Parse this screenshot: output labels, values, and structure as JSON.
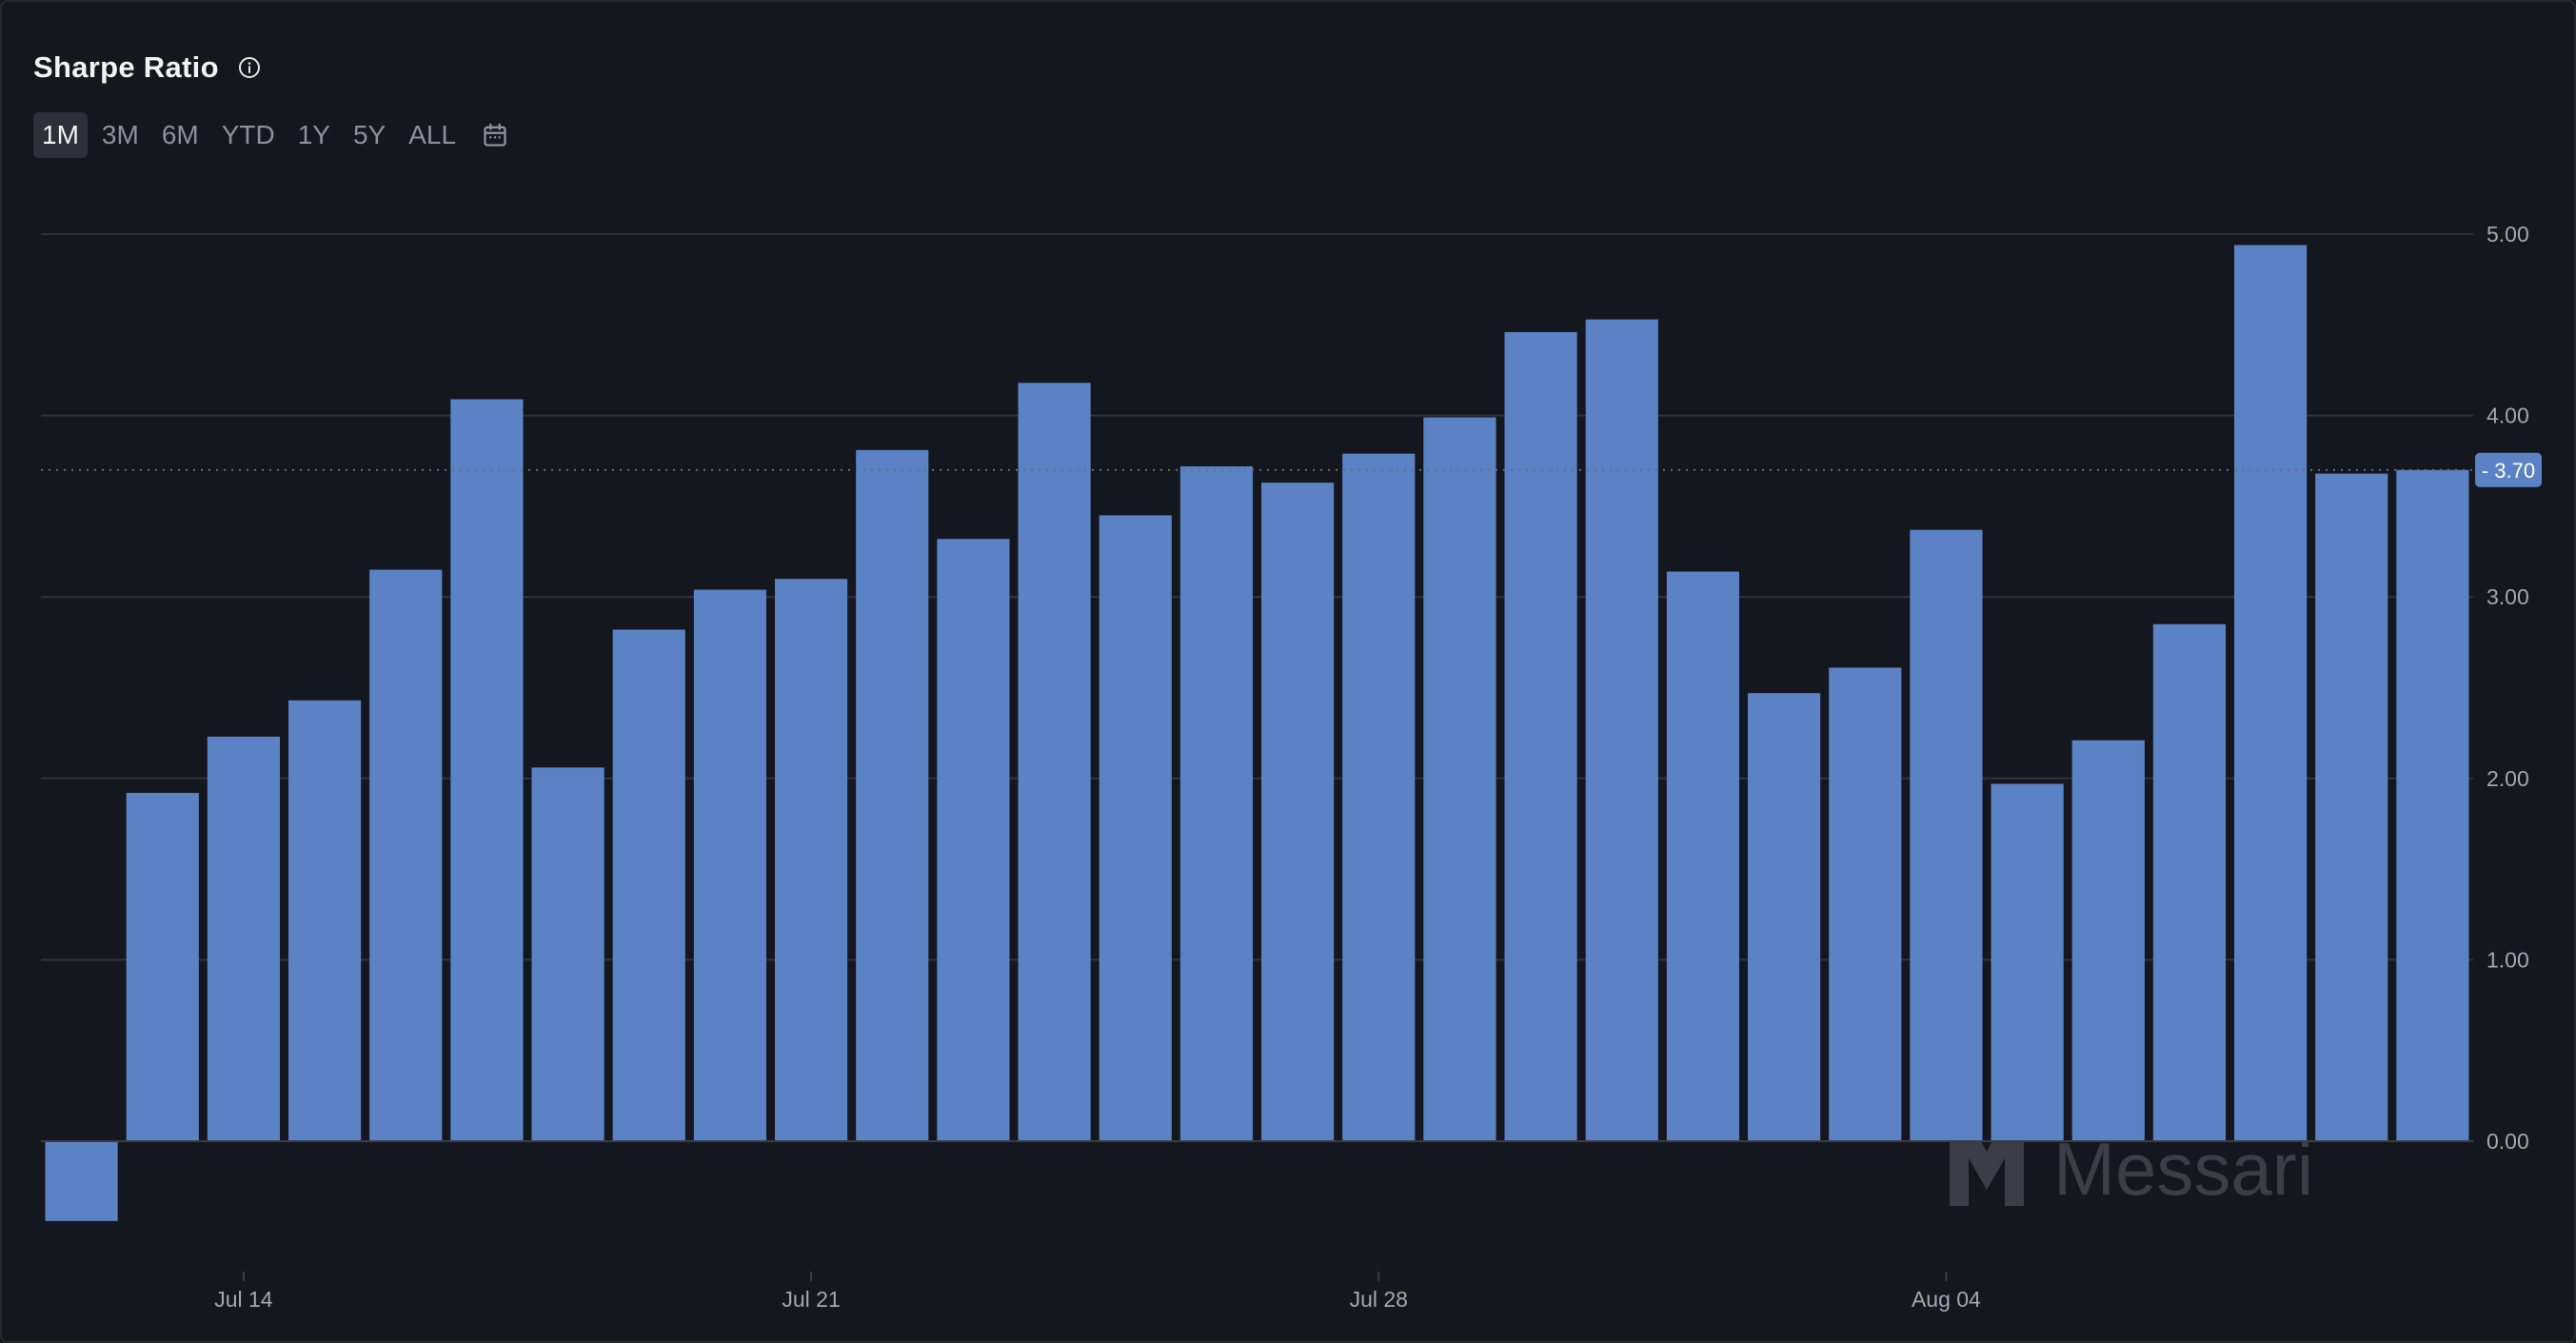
{
  "title": "Sharpe Ratio",
  "range_tabs": [
    "1M",
    "3M",
    "6M",
    "YTD",
    "1Y",
    "5Y",
    "ALL"
  ],
  "active_range": "1M",
  "icons": {
    "info": "info-icon",
    "calendar": "calendar-icon",
    "watermark": "messari-logo"
  },
  "watermark_text": "Messari",
  "colors": {
    "background": "#15171f",
    "bar": "#5b82c4",
    "grid": "#2f323b",
    "text": "#a3a7b1",
    "current_badge": "#5b82c4"
  },
  "chart_data": {
    "type": "bar",
    "title": "Sharpe Ratio",
    "xlabel": "",
    "ylabel": "",
    "x": [
      "2025-07-12",
      "2025-07-13",
      "2025-07-14",
      "2025-07-15",
      "2025-07-16",
      "2025-07-17",
      "2025-07-18",
      "2025-07-19",
      "2025-07-20",
      "2025-07-21",
      "2025-07-22",
      "2025-07-23",
      "2025-07-24",
      "2025-07-25",
      "2025-07-26",
      "2025-07-27",
      "2025-07-28",
      "2025-07-29",
      "2025-07-30",
      "2025-07-31",
      "2025-08-01",
      "2025-08-02",
      "2025-08-03",
      "2025-08-04",
      "2025-08-05",
      "2025-08-06",
      "2025-08-07",
      "2025-08-08",
      "2025-08-09",
      "2025-08-10"
    ],
    "values": [
      -0.44,
      1.92,
      2.23,
      2.43,
      3.15,
      4.09,
      2.06,
      2.82,
      3.04,
      3.1,
      3.81,
      3.32,
      4.18,
      3.45,
      3.72,
      3.63,
      3.79,
      3.99,
      4.46,
      4.53,
      3.14,
      2.47,
      2.61,
      3.37,
      1.97,
      2.21,
      2.85,
      4.94,
      3.68,
      3.7
    ],
    "x_tick_labels": [
      {
        "label": "Jul 14",
        "date": "2025-07-14"
      },
      {
        "label": "Jul 21",
        "date": "2025-07-21"
      },
      {
        "label": "Jul 28",
        "date": "2025-07-28"
      },
      {
        "label": "Aug 04",
        "date": "2025-08-04"
      }
    ],
    "y_ticks": [
      {
        "value": 0,
        "label": "0.00"
      },
      {
        "value": 1,
        "label": "1.00"
      },
      {
        "value": 2,
        "label": "2.00"
      },
      {
        "value": 3,
        "label": "3.00"
      },
      {
        "value": 4,
        "label": "4.00"
      },
      {
        "value": 5,
        "label": "5.00"
      }
    ],
    "ylim": [
      -0.9,
      5.1
    ],
    "grid": true,
    "current_value": 3.7,
    "current_value_label": "3.70",
    "y_axis_side": "right"
  }
}
